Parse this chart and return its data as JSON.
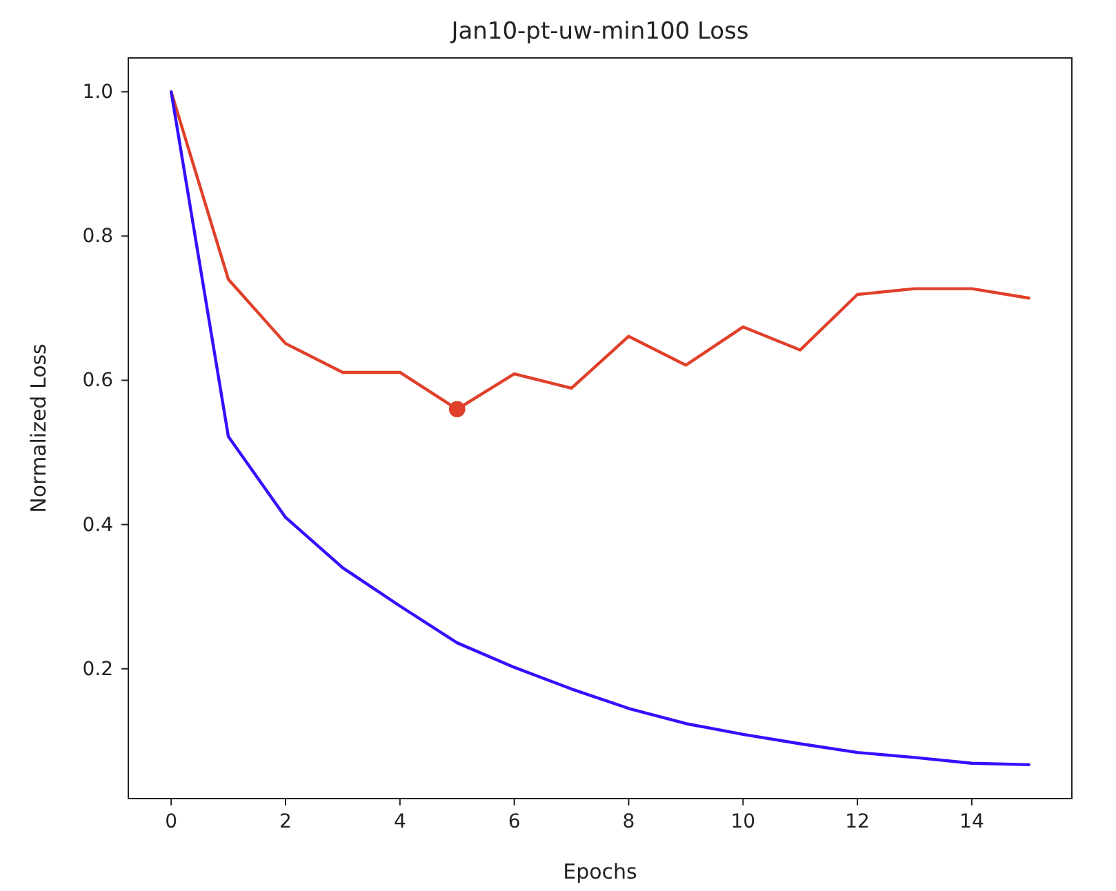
{
  "chart_data": {
    "type": "line",
    "title": "Jan10-pt-uw-min100 Loss",
    "xlabel": "Epochs",
    "ylabel": "Normalized Loss",
    "x": [
      0,
      1,
      2,
      3,
      4,
      5,
      6,
      7,
      8,
      9,
      10,
      11,
      12,
      13,
      14,
      15
    ],
    "series": [
      {
        "color": "#e0402a",
        "values": [
          1.0,
          0.74,
          0.651,
          0.611,
          0.611,
          0.56,
          0.609,
          0.589,
          0.661,
          0.621,
          0.674,
          0.642,
          0.719,
          0.727,
          0.727,
          0.714
        ]
      },
      {
        "color": "#3311ff",
        "values": [
          1.0,
          0.522,
          0.41,
          0.34,
          0.287,
          0.236,
          0.202,
          0.172,
          0.145,
          0.124,
          0.109,
          0.096,
          0.084,
          0.077,
          0.069,
          0.067
        ]
      },
      {
        "type": "scatter",
        "color": "#e0402a",
        "x": [
          5
        ],
        "values": [
          0.56
        ],
        "marker": "circle"
      }
    ],
    "xlim": [
      -0.75,
      15.75
    ],
    "xticks": [
      0,
      2,
      4,
      6,
      8,
      10,
      12,
      14
    ],
    "ylim": [
      0.02,
      1.047
    ],
    "yticks": [
      {
        "value": 0.2,
        "label": "0.2"
      },
      {
        "value": 0.4,
        "label": "0.4"
      },
      {
        "value": 0.6,
        "label": "0.6"
      },
      {
        "value": 0.8,
        "label": "0.8"
      },
      {
        "value": 1.0,
        "label": "1.0"
      }
    ],
    "grid": false
  }
}
